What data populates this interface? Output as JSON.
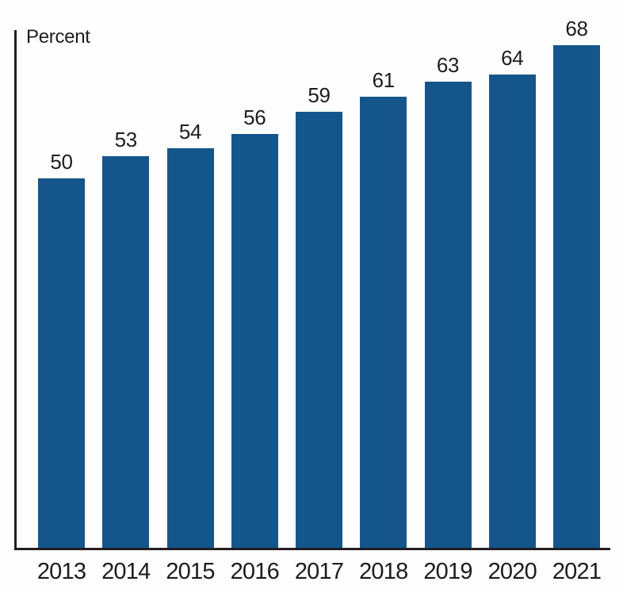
{
  "chart_data": {
    "type": "bar",
    "categories": [
      "2013",
      "2014",
      "2015",
      "2016",
      "2017",
      "2018",
      "2019",
      "2020",
      "2021"
    ],
    "values": [
      50,
      53,
      54,
      56,
      59,
      61,
      63,
      64,
      68
    ],
    "title": "",
    "xlabel": "",
    "ylabel": "Percent",
    "ylim": [
      0,
      70
    ],
    "grid": false,
    "legend": "none",
    "value_labels_shown": true,
    "bar_color": "#14568B",
    "axis_color": "#231F20",
    "text_color": "#1E1E1E"
  }
}
